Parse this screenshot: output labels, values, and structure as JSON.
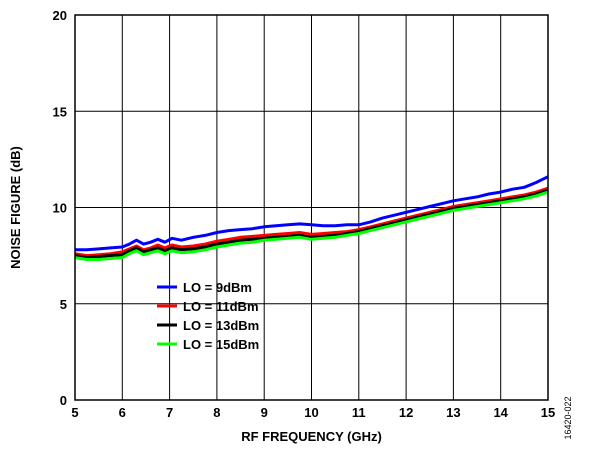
{
  "figure_id": "16420-022",
  "chart_data": {
    "type": "line",
    "title": "",
    "xlabel": "RF FREQUENCY (GHz)",
    "ylabel": "NOISE FIGURE (dB)",
    "xlim": [
      5,
      15
    ],
    "ylim": [
      0,
      20
    ],
    "x_ticks": [
      5,
      6,
      7,
      8,
      9,
      10,
      11,
      12,
      13,
      14,
      15
    ],
    "y_ticks": [
      0,
      5,
      10,
      15,
      20
    ],
    "grid": true,
    "legend_position": "lower-left",
    "x": [
      5.0,
      5.25,
      5.5,
      5.75,
      6.0,
      6.15,
      6.3,
      6.45,
      6.6,
      6.75,
      6.9,
      7.05,
      7.25,
      7.5,
      7.75,
      8.0,
      8.25,
      8.5,
      8.75,
      9.0,
      9.25,
      9.5,
      9.75,
      10.0,
      10.25,
      10.5,
      10.75,
      11.0,
      11.25,
      11.5,
      11.75,
      12.0,
      12.25,
      12.5,
      12.75,
      13.0,
      13.25,
      13.5,
      13.75,
      14.0,
      14.25,
      14.5,
      14.75,
      15.0
    ],
    "series": [
      {
        "name": "LO = 9dBm",
        "color": "#0000ff",
        "values": [
          7.8,
          7.8,
          7.85,
          7.9,
          7.95,
          8.1,
          8.3,
          8.1,
          8.2,
          8.35,
          8.2,
          8.4,
          8.3,
          8.45,
          8.55,
          8.7,
          8.8,
          8.85,
          8.9,
          9.0,
          9.05,
          9.1,
          9.15,
          9.1,
          9.05,
          9.05,
          9.1,
          9.1,
          9.25,
          9.45,
          9.6,
          9.75,
          9.9,
          10.05,
          10.2,
          10.35,
          10.45,
          10.55,
          10.7,
          10.8,
          10.95,
          11.05,
          11.3,
          11.6
        ]
      },
      {
        "name": "LO = 11dBm",
        "color": "#ff0000",
        "values": [
          7.6,
          7.5,
          7.55,
          7.6,
          7.7,
          7.85,
          8.0,
          7.8,
          7.9,
          8.05,
          7.9,
          8.05,
          7.95,
          8.0,
          8.1,
          8.25,
          8.35,
          8.45,
          8.5,
          8.55,
          8.6,
          8.65,
          8.7,
          8.6,
          8.65,
          8.7,
          8.75,
          8.85,
          9.0,
          9.15,
          9.3,
          9.45,
          9.6,
          9.75,
          9.9,
          10.05,
          10.15,
          10.25,
          10.35,
          10.45,
          10.55,
          10.65,
          10.8,
          11.0
        ]
      },
      {
        "name": "LO = 13dBm",
        "color": "#000000",
        "values": [
          7.5,
          7.4,
          7.45,
          7.5,
          7.55,
          7.75,
          7.9,
          7.7,
          7.8,
          7.9,
          7.75,
          7.9,
          7.8,
          7.85,
          7.95,
          8.1,
          8.2,
          8.3,
          8.35,
          8.4,
          8.45,
          8.5,
          8.55,
          8.45,
          8.5,
          8.55,
          8.65,
          8.75,
          8.9,
          9.05,
          9.2,
          9.35,
          9.5,
          9.65,
          9.8,
          9.95,
          10.05,
          10.15,
          10.25,
          10.35,
          10.45,
          10.55,
          10.7,
          10.9
        ]
      },
      {
        "name": "LO = 15dBm",
        "color": "#00ff00",
        "values": [
          7.4,
          7.3,
          7.3,
          7.35,
          7.4,
          7.6,
          7.75,
          7.55,
          7.65,
          7.75,
          7.6,
          7.75,
          7.65,
          7.7,
          7.8,
          7.95,
          8.05,
          8.15,
          8.2,
          8.3,
          8.35,
          8.4,
          8.45,
          8.35,
          8.4,
          8.45,
          8.55,
          8.65,
          8.8,
          8.95,
          9.1,
          9.25,
          9.4,
          9.55,
          9.7,
          9.85,
          9.95,
          10.05,
          10.15,
          10.25,
          10.35,
          10.45,
          10.6,
          10.8
        ]
      }
    ]
  }
}
